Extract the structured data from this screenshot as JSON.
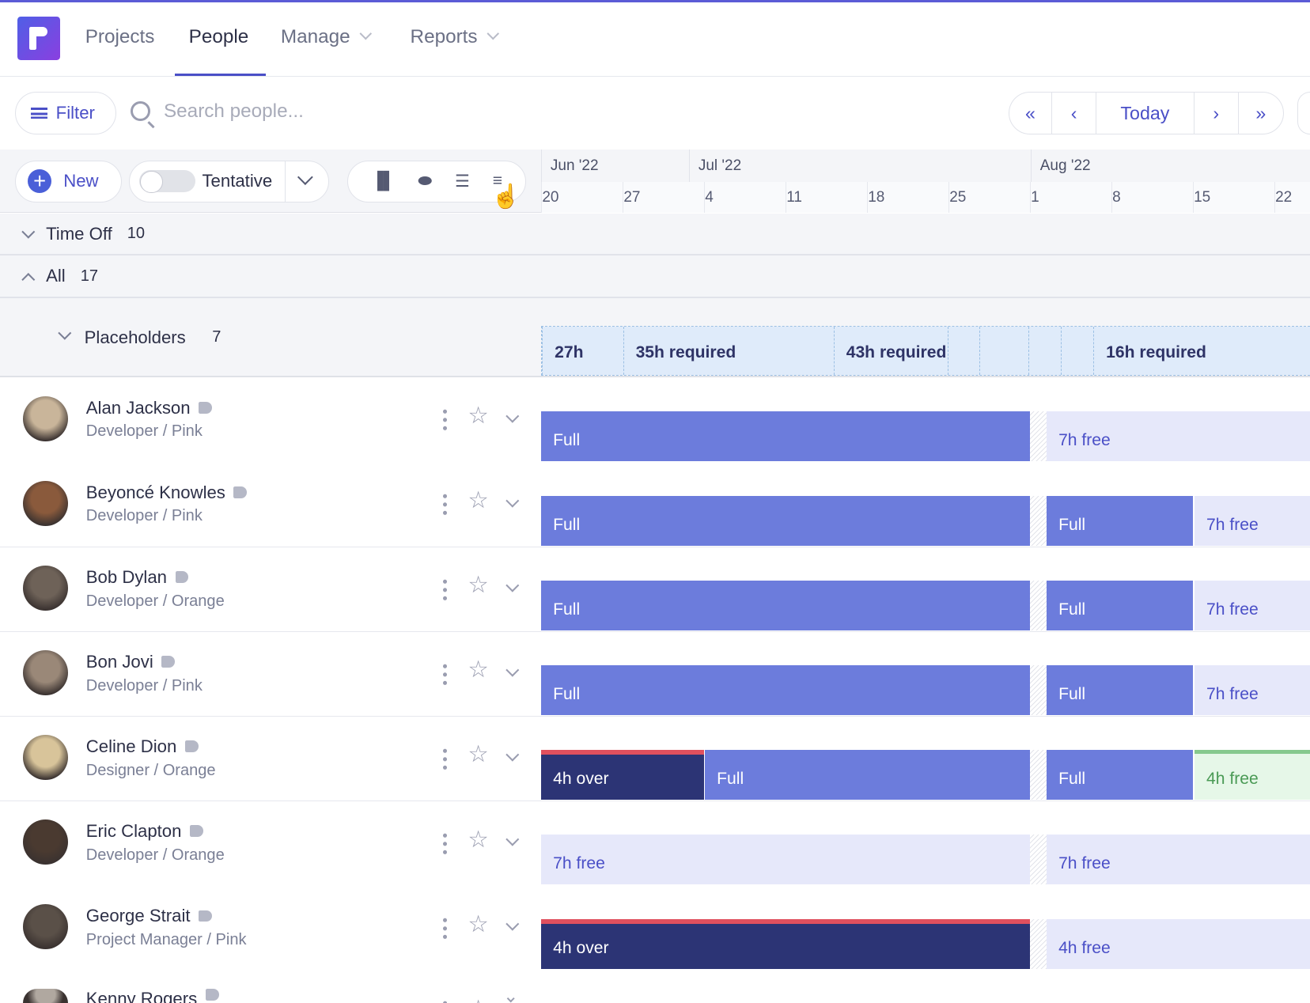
{
  "nav": {
    "items": [
      {
        "label": "Projects"
      },
      {
        "label": "People",
        "active": true
      },
      {
        "label": "Manage",
        "dropdown": true
      },
      {
        "label": "Reports",
        "dropdown": true
      }
    ]
  },
  "filter": {
    "label": "Filter",
    "icon": "filter-icon"
  },
  "search": {
    "placeholder": "Search people..."
  },
  "datenav": {
    "first": "«",
    "prev": "‹",
    "today": "Today",
    "next": "›",
    "last": "»"
  },
  "toolbar": {
    "new_label": "New",
    "tentative_label": "Tentative",
    "tentative_on": false,
    "view_icons": [
      "bar-chart-icon",
      "toggle-icon",
      "list-icon",
      "sort-list-icon"
    ]
  },
  "timeline": {
    "months": [
      {
        "label": "Jun '22"
      },
      {
        "label": "Jul '22"
      },
      {
        "label": "Aug '22"
      }
    ],
    "weeks": [
      "20",
      "27",
      "4",
      "11",
      "18",
      "25",
      "1",
      "8",
      "15",
      "22"
    ]
  },
  "groups": {
    "time_off": {
      "label": "Time Off",
      "count": "10"
    },
    "all": {
      "label": "All",
      "count": "17"
    },
    "placeholders": {
      "label": "Placeholders",
      "count": "7"
    }
  },
  "placeholder_cells": [
    "27h",
    "35h required",
    "43h required",
    "",
    "",
    "",
    "",
    "16h required"
  ],
  "colors": {
    "accent": "#4a4fc7",
    "full": "#6c7cdc",
    "over": "#2c3475",
    "over_border": "#e0505e",
    "free": "#e6e8fa",
    "green_free": "#e6f7e8"
  },
  "people": [
    {
      "name": "Alan Jackson",
      "role": "Developer / Pink",
      "segments": [
        {
          "label": "Full",
          "kind": "full",
          "start": "2022-06-20",
          "end": "2022-08-01"
        },
        {
          "label": "7h free",
          "kind": "free",
          "start": "2022-08-02",
          "end": "2022-08-29"
        }
      ]
    },
    {
      "name": "Beyoncé Knowles",
      "role": "Developer / Pink",
      "segments": [
        {
          "label": "Full",
          "kind": "full",
          "start": "2022-06-20",
          "end": "2022-08-01"
        },
        {
          "label": "Full",
          "kind": "full",
          "start": "2022-08-02",
          "end": "2022-08-15"
        },
        {
          "label": "7h free",
          "kind": "free",
          "start": "2022-08-15",
          "end": "2022-08-29"
        }
      ]
    },
    {
      "name": "Bob Dylan",
      "role": "Developer / Orange",
      "segments": [
        {
          "label": "Full",
          "kind": "full",
          "start": "2022-06-20",
          "end": "2022-08-01"
        },
        {
          "label": "Full",
          "kind": "full",
          "start": "2022-08-02",
          "end": "2022-08-15"
        },
        {
          "label": "7h free",
          "kind": "free",
          "start": "2022-08-15",
          "end": "2022-08-29"
        }
      ]
    },
    {
      "name": "Bon Jovi",
      "role": "Developer / Pink",
      "segments": [
        {
          "label": "Full",
          "kind": "full",
          "start": "2022-06-20",
          "end": "2022-08-01"
        },
        {
          "label": "Full",
          "kind": "full",
          "start": "2022-08-02",
          "end": "2022-08-15"
        },
        {
          "label": "7h free",
          "kind": "free",
          "start": "2022-08-15",
          "end": "2022-08-29"
        }
      ]
    },
    {
      "name": "Celine Dion",
      "role": "Designer / Orange",
      "segments": [
        {
          "label": "4h over",
          "kind": "over",
          "start": "2022-06-20",
          "end": "2022-07-04"
        },
        {
          "label": "Full",
          "kind": "full",
          "start": "2022-07-04",
          "end": "2022-08-01"
        },
        {
          "label": "Full",
          "kind": "full",
          "start": "2022-08-02",
          "end": "2022-08-15"
        },
        {
          "label": "4h free",
          "kind": "green",
          "start": "2022-08-15",
          "end": "2022-08-29"
        }
      ]
    },
    {
      "name": "Eric Clapton",
      "role": "Developer / Orange",
      "segments": [
        {
          "label": "7h free",
          "kind": "free",
          "start": "2022-06-20",
          "end": "2022-08-01"
        },
        {
          "label": "7h free",
          "kind": "free",
          "start": "2022-08-02",
          "end": "2022-08-29"
        }
      ]
    },
    {
      "name": "George Strait",
      "role": "Project Manager / Pink",
      "segments": [
        {
          "label": "4h over",
          "kind": "over",
          "start": "2022-06-20",
          "end": "2022-08-01"
        },
        {
          "label": "4h free",
          "kind": "free",
          "start": "2022-08-02",
          "end": "2022-08-29"
        }
      ]
    },
    {
      "name": "Kenny Rogers",
      "role": "",
      "segments": []
    }
  ]
}
